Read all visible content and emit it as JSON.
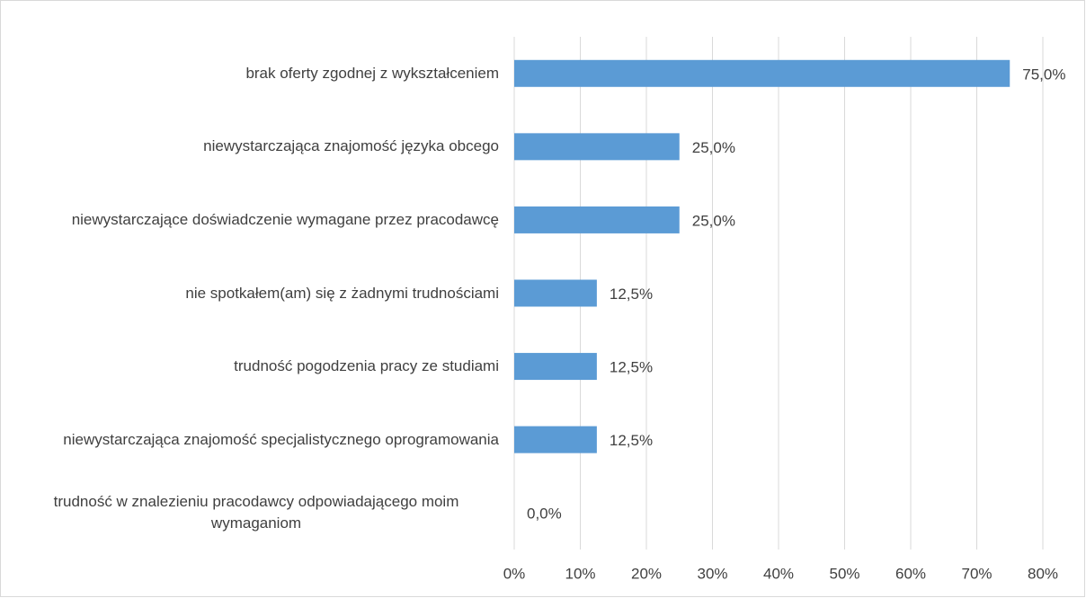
{
  "chart_data": {
    "type": "bar",
    "orientation": "horizontal",
    "categories": [
      "brak oferty zgodnej z wykształceniem",
      "niewystarczająca znajomość języka obcego",
      "niewystarczające doświadczenie wymagane przez pracodawcę",
      "nie spotkałem(am) się z żadnymi trudnościami",
      "trudność pogodzenia pracy ze studiami",
      "niewystarczająca znajomość specjalistycznego oprogramowania",
      "trudność w znalezieniu pracodawcy odpowiadającego moim wymaganiom"
    ],
    "values": [
      75,
      25,
      25,
      12.5,
      12.5,
      12.5,
      0
    ],
    "value_labels": [
      "75,0%",
      "25,0%",
      "25,0%",
      "12,5%",
      "12,5%",
      "12,5%",
      "0,0%"
    ],
    "color": "#5b9bd5",
    "xlim": [
      0,
      80
    ],
    "xticks": [
      {
        "value": 0,
        "label": "0%"
      },
      {
        "value": 10,
        "label": "10%"
      },
      {
        "value": 20,
        "label": "20%"
      },
      {
        "value": 30,
        "label": "30%"
      },
      {
        "value": 40,
        "label": "40%"
      },
      {
        "value": 50,
        "label": "50%"
      },
      {
        "value": 60,
        "label": "60%"
      },
      {
        "value": 70,
        "label": "70%"
      },
      {
        "value": 80,
        "label": "80%"
      }
    ],
    "grid": true
  }
}
